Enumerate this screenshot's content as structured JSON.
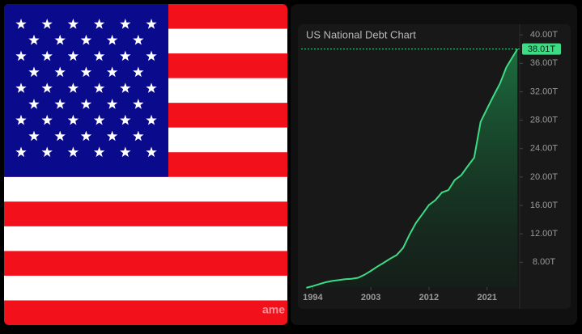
{
  "watermark": "ame",
  "chart_data": {
    "type": "area",
    "title": "US National Debt Chart",
    "x": [
      1993,
      1994,
      1995,
      1996,
      1997,
      1998,
      1999,
      2000,
      2001,
      2002,
      2003,
      2004,
      2005,
      2006,
      2007,
      2008,
      2009,
      2010,
      2011,
      2012,
      2013,
      2014,
      2015,
      2016,
      2017,
      2018,
      2019,
      2020,
      2021,
      2022,
      2023,
      2024,
      2025.7
    ],
    "series": [
      {
        "color": "#3ddc84",
        "values": [
          4.4,
          4.64,
          4.92,
          5.18,
          5.37,
          5.48,
          5.61,
          5.67,
          5.81,
          6.23,
          6.78,
          7.38,
          7.93,
          8.51,
          9.01,
          10.02,
          11.91,
          13.56,
          14.79,
          16.07,
          16.74,
          17.82,
          18.15,
          19.57,
          20.24,
          21.52,
          22.72,
          27.75,
          29.62,
          31.42,
          33.17,
          35.46,
          38.01
        ]
      }
    ],
    "xlim": [
      1992.2,
      2025.8
    ],
    "xticks": [
      1994,
      2003,
      2012,
      2021
    ],
    "ylim": [
      4.5,
      41.5
    ],
    "yticks": [
      {
        "value": 8,
        "label": "8.00T"
      },
      {
        "value": 12,
        "label": "12.00T"
      },
      {
        "value": 16,
        "label": "16.00T"
      },
      {
        "value": 20,
        "label": "20.00T"
      },
      {
        "value": 24,
        "label": "24.00T"
      },
      {
        "value": 28,
        "label": "28.00T"
      },
      {
        "value": 32,
        "label": "32.00T"
      },
      {
        "value": 36,
        "label": "36.00T"
      },
      {
        "value": 40,
        "label": "40.00T"
      }
    ],
    "price_line": {
      "value": 38.01,
      "label": "38.01T"
    }
  }
}
